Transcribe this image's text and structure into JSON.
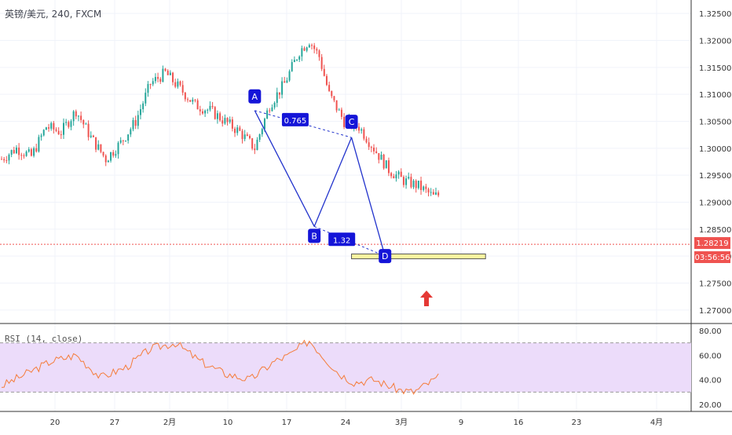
{
  "header": {
    "symbol": "英镑/美元, 240, FXCM"
  },
  "price_axis": {
    "ticks": [
      "1.32500",
      "1.32000",
      "1.31500",
      "1.31000",
      "1.30500",
      "1.30000",
      "1.29500",
      "1.29000",
      "1.28500",
      "1.28000",
      "1.27500",
      "1.27000"
    ],
    "current_price": "1.28219",
    "countdown": "03:56:56"
  },
  "rsi": {
    "title": "RSI (14, close)",
    "ticks": [
      "80.00",
      "60.00",
      "40.00",
      "20.00"
    ],
    "upper": 70,
    "lower": 30
  },
  "time_axis": {
    "ticks": [
      "20",
      "27",
      "2月",
      "10",
      "17",
      "24",
      "3月",
      "9",
      "16",
      "23",
      "4月"
    ]
  },
  "pattern": {
    "labels": {
      "a": "A",
      "b": "B",
      "c": "C",
      "d": "D"
    },
    "ratios": {
      "ac": "0.765",
      "bd": "1.32"
    }
  },
  "colors": {
    "up": "#26a69a",
    "down": "#ef5350",
    "pattern": "#2233cc",
    "rsi_line": "#f57c3a",
    "rsi_band": "#ecdcfa",
    "zone": "#fbf6a0",
    "arrow": "#e53935"
  },
  "chart_data": {
    "type": "candlestick",
    "title": "英镑/美元, 240, FXCM",
    "y_range": [
      1.2675,
      1.3275
    ],
    "current_price": 1.28219,
    "x_ticks": [
      "20",
      "27",
      "2月",
      "10",
      "17",
      "24",
      "3月",
      "9",
      "16",
      "23",
      "4月"
    ],
    "close_path": [
      [
        0,
        1.298
      ],
      [
        6,
        1.3
      ],
      [
        12,
        1.2985
      ],
      [
        18,
        1.304
      ],
      [
        24,
        1.303
      ],
      [
        30,
        1.307
      ],
      [
        36,
        1.302
      ],
      [
        42,
        1.298
      ],
      [
        48,
        1.301
      ],
      [
        54,
        1.305
      ],
      [
        60,
        1.312
      ],
      [
        66,
        1.314
      ],
      [
        72,
        1.311
      ],
      [
        78,
        1.308
      ],
      [
        84,
        1.307
      ],
      [
        90,
        1.305
      ],
      [
        96,
        1.303
      ],
      [
        102,
        1.3
      ],
      [
        108,
        1.308
      ],
      [
        114,
        1.312
      ],
      [
        120,
        1.318
      ],
      [
        124,
        1.32
      ],
      [
        128,
        1.317
      ],
      [
        132,
        1.31
      ],
      [
        138,
        1.305
      ],
      [
        144,
        1.304
      ],
      [
        150,
        1.3
      ],
      [
        156,
        1.296
      ],
      [
        162,
        1.294
      ],
      [
        168,
        1.293
      ],
      [
        174,
        1.291
      ],
      [
        180,
        1.292
      ],
      [
        186,
        1.296
      ],
      [
        192,
        1.298
      ],
      [
        198,
        1.299
      ],
      [
        204,
        1.3
      ],
      [
        210,
        1.306
      ],
      [
        216,
        1.304
      ],
      [
        222,
        1.303
      ],
      [
        228,
        1.301
      ],
      [
        234,
        1.304
      ],
      [
        240,
        1.301
      ],
      [
        246,
        1.295
      ],
      [
        252,
        1.288
      ],
      [
        258,
        1.287
      ],
      [
        264,
        1.292
      ],
      [
        270,
        1.296
      ],
      [
        276,
        1.3
      ],
      [
        282,
        1.3015
      ],
      [
        288,
        1.295
      ],
      [
        294,
        1.292
      ],
      [
        300,
        1.288
      ],
      [
        306,
        1.286
      ],
      [
        312,
        1.282
      ],
      [
        316,
        1.278
      ],
      [
        320,
        1.276
      ],
      [
        326,
        1.279
      ],
      [
        332,
        1.28
      ],
      [
        336,
        1.279
      ],
      [
        340,
        1.2822
      ]
    ],
    "pattern": [
      {
        "point": "A",
        "x": 204,
        "y": 1.307
      },
      {
        "point": "B",
        "x": 252,
        "y": 1.2855
      },
      {
        "point": "C",
        "x": 282,
        "y": 1.302
      },
      {
        "point": "D",
        "x": 309,
        "y": 1.28
      }
    ],
    "ratios": {
      "AC": 0.765,
      "BD": 1.32
    },
    "support_zone": {
      "x_from": 282,
      "x_to": 390,
      "y_low": 1.2795,
      "y_high": 1.2804
    },
    "rsi": {
      "period": 14,
      "source": "close",
      "y_range": [
        15,
        85
      ],
      "upper": 70,
      "lower": 30,
      "values": [
        [
          0,
          35
        ],
        [
          10,
          45
        ],
        [
          20,
          55
        ],
        [
          30,
          60
        ],
        [
          40,
          42
        ],
        [
          50,
          50
        ],
        [
          60,
          65
        ],
        [
          70,
          70
        ],
        [
          80,
          55
        ],
        [
          90,
          45
        ],
        [
          100,
          40
        ],
        [
          110,
          55
        ],
        [
          116,
          60
        ],
        [
          124,
          72
        ],
        [
          130,
          58
        ],
        [
          136,
          45
        ],
        [
          142,
          38
        ],
        [
          150,
          40
        ],
        [
          160,
          32
        ],
        [
          166,
          30
        ],
        [
          176,
          42
        ],
        [
          186,
          55
        ],
        [
          196,
          60
        ],
        [
          204,
          72
        ],
        [
          210,
          58
        ],
        [
          220,
          52
        ],
        [
          232,
          45
        ],
        [
          244,
          40
        ],
        [
          252,
          22
        ],
        [
          258,
          35
        ],
        [
          266,
          55
        ],
        [
          272,
          60
        ],
        [
          280,
          58
        ],
        [
          284,
          62
        ],
        [
          292,
          50
        ],
        [
          300,
          35
        ],
        [
          306,
          38
        ],
        [
          310,
          22
        ],
        [
          316,
          40
        ],
        [
          324,
          42
        ],
        [
          332,
          45
        ],
        [
          340,
          48
        ]
      ]
    }
  }
}
